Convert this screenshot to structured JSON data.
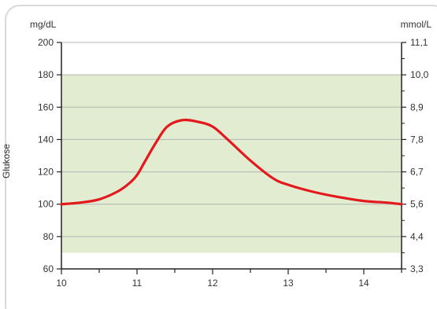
{
  "chart_data": {
    "type": "line",
    "title": "",
    "xlabel": "",
    "ylabel": "Glukose",
    "left_unit": "mg/dL",
    "right_unit": "mmol/L",
    "xlim": [
      10,
      14.5
    ],
    "ylim": [
      60,
      200
    ],
    "x_ticks": [
      "10",
      "11",
      "12",
      "13",
      "14"
    ],
    "y_ticks": [
      "60",
      "80",
      "100",
      "120",
      "140",
      "160",
      "180",
      "200"
    ],
    "right_ticks": [
      {
        "y": 60,
        "label": "3,3"
      },
      {
        "y": 80,
        "label": "4,4"
      },
      {
        "y": 100,
        "label": "5,6"
      },
      {
        "y": 120,
        "label": "6,7"
      },
      {
        "y": 140,
        "label": "7,8"
      },
      {
        "y": 160,
        "label": "8,9"
      },
      {
        "y": 180,
        "label": "10,0"
      },
      {
        "y": 200,
        "label": "11,1"
      }
    ],
    "target_range": [
      70,
      180
    ],
    "grid": true,
    "colors": {
      "line": "#e3191e",
      "band": "#e1ecd1",
      "grid": "#b4b4b4",
      "axis": "#222222",
      "frame": "#d9d9d9"
    },
    "series": [
      {
        "name": "",
        "x": [
          10.0,
          10.25,
          10.5,
          10.75,
          10.9,
          11.0,
          11.1,
          11.25,
          11.4,
          11.6,
          11.8,
          12.0,
          12.2,
          12.5,
          12.8,
          13.0,
          13.3,
          13.6,
          14.0,
          14.3,
          14.5
        ],
        "y": [
          100,
          101,
          103,
          108,
          113,
          118,
          126,
          138,
          148,
          152,
          151,
          148,
          140,
          127,
          116,
          112,
          108,
          105,
          102,
          101,
          100
        ]
      }
    ]
  }
}
